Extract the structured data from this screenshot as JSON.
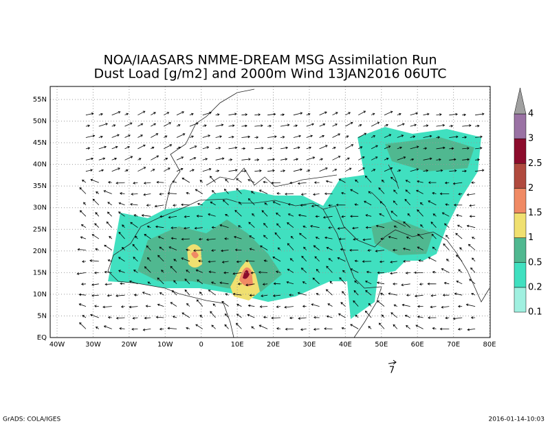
{
  "title_lines": [
    "NOA/IAASARS NMME-DREAM MSG Assimilation Run",
    "Dust Load [g/m2] and 2000m Wind 13JAN2016 06UTC"
  ],
  "lon_ticks": [
    {
      "value": -40,
      "label": "40W"
    },
    {
      "value": -30,
      "label": "30W"
    },
    {
      "value": -20,
      "label": "20W"
    },
    {
      "value": -10,
      "label": "10W"
    },
    {
      "value": 0,
      "label": "0"
    },
    {
      "value": 10,
      "label": "10E"
    },
    {
      "value": 20,
      "label": "20E"
    },
    {
      "value": 30,
      "label": "30E"
    },
    {
      "value": 40,
      "label": "40E"
    },
    {
      "value": 50,
      "label": "50E"
    },
    {
      "value": 60,
      "label": "60E"
    },
    {
      "value": 70,
      "label": "70E"
    },
    {
      "value": 80,
      "label": "80E"
    }
  ],
  "lat_ticks": [
    {
      "value": 0,
      "label": "EQ"
    },
    {
      "value": 5,
      "label": "5N"
    },
    {
      "value": 10,
      "label": "10N"
    },
    {
      "value": 15,
      "label": "15N"
    },
    {
      "value": 20,
      "label": "20N"
    },
    {
      "value": 25,
      "label": "25N"
    },
    {
      "value": 30,
      "label": "30N"
    },
    {
      "value": 35,
      "label": "35N"
    },
    {
      "value": 40,
      "label": "40N"
    },
    {
      "value": 45,
      "label": "45N"
    },
    {
      "value": 50,
      "label": "50N"
    },
    {
      "value": 55,
      "label": "55N"
    }
  ],
  "colorbar": {
    "labels": [
      "0.1",
      "0.2",
      "0.5",
      "1",
      "1.5",
      "2",
      "2.5",
      "3",
      "4"
    ],
    "colors": [
      "#a0f0e0",
      "#40e0c0",
      "#50b890",
      "#f0e070",
      "#f08a64",
      "#b04a3e",
      "#8c0c2c",
      "#9a72a4",
      "#a0a0a0"
    ]
  },
  "reference_vector": "7",
  "footer_left": "GrADS: COLA/IGES",
  "footer_right": "2016-01-14-10:03"
}
